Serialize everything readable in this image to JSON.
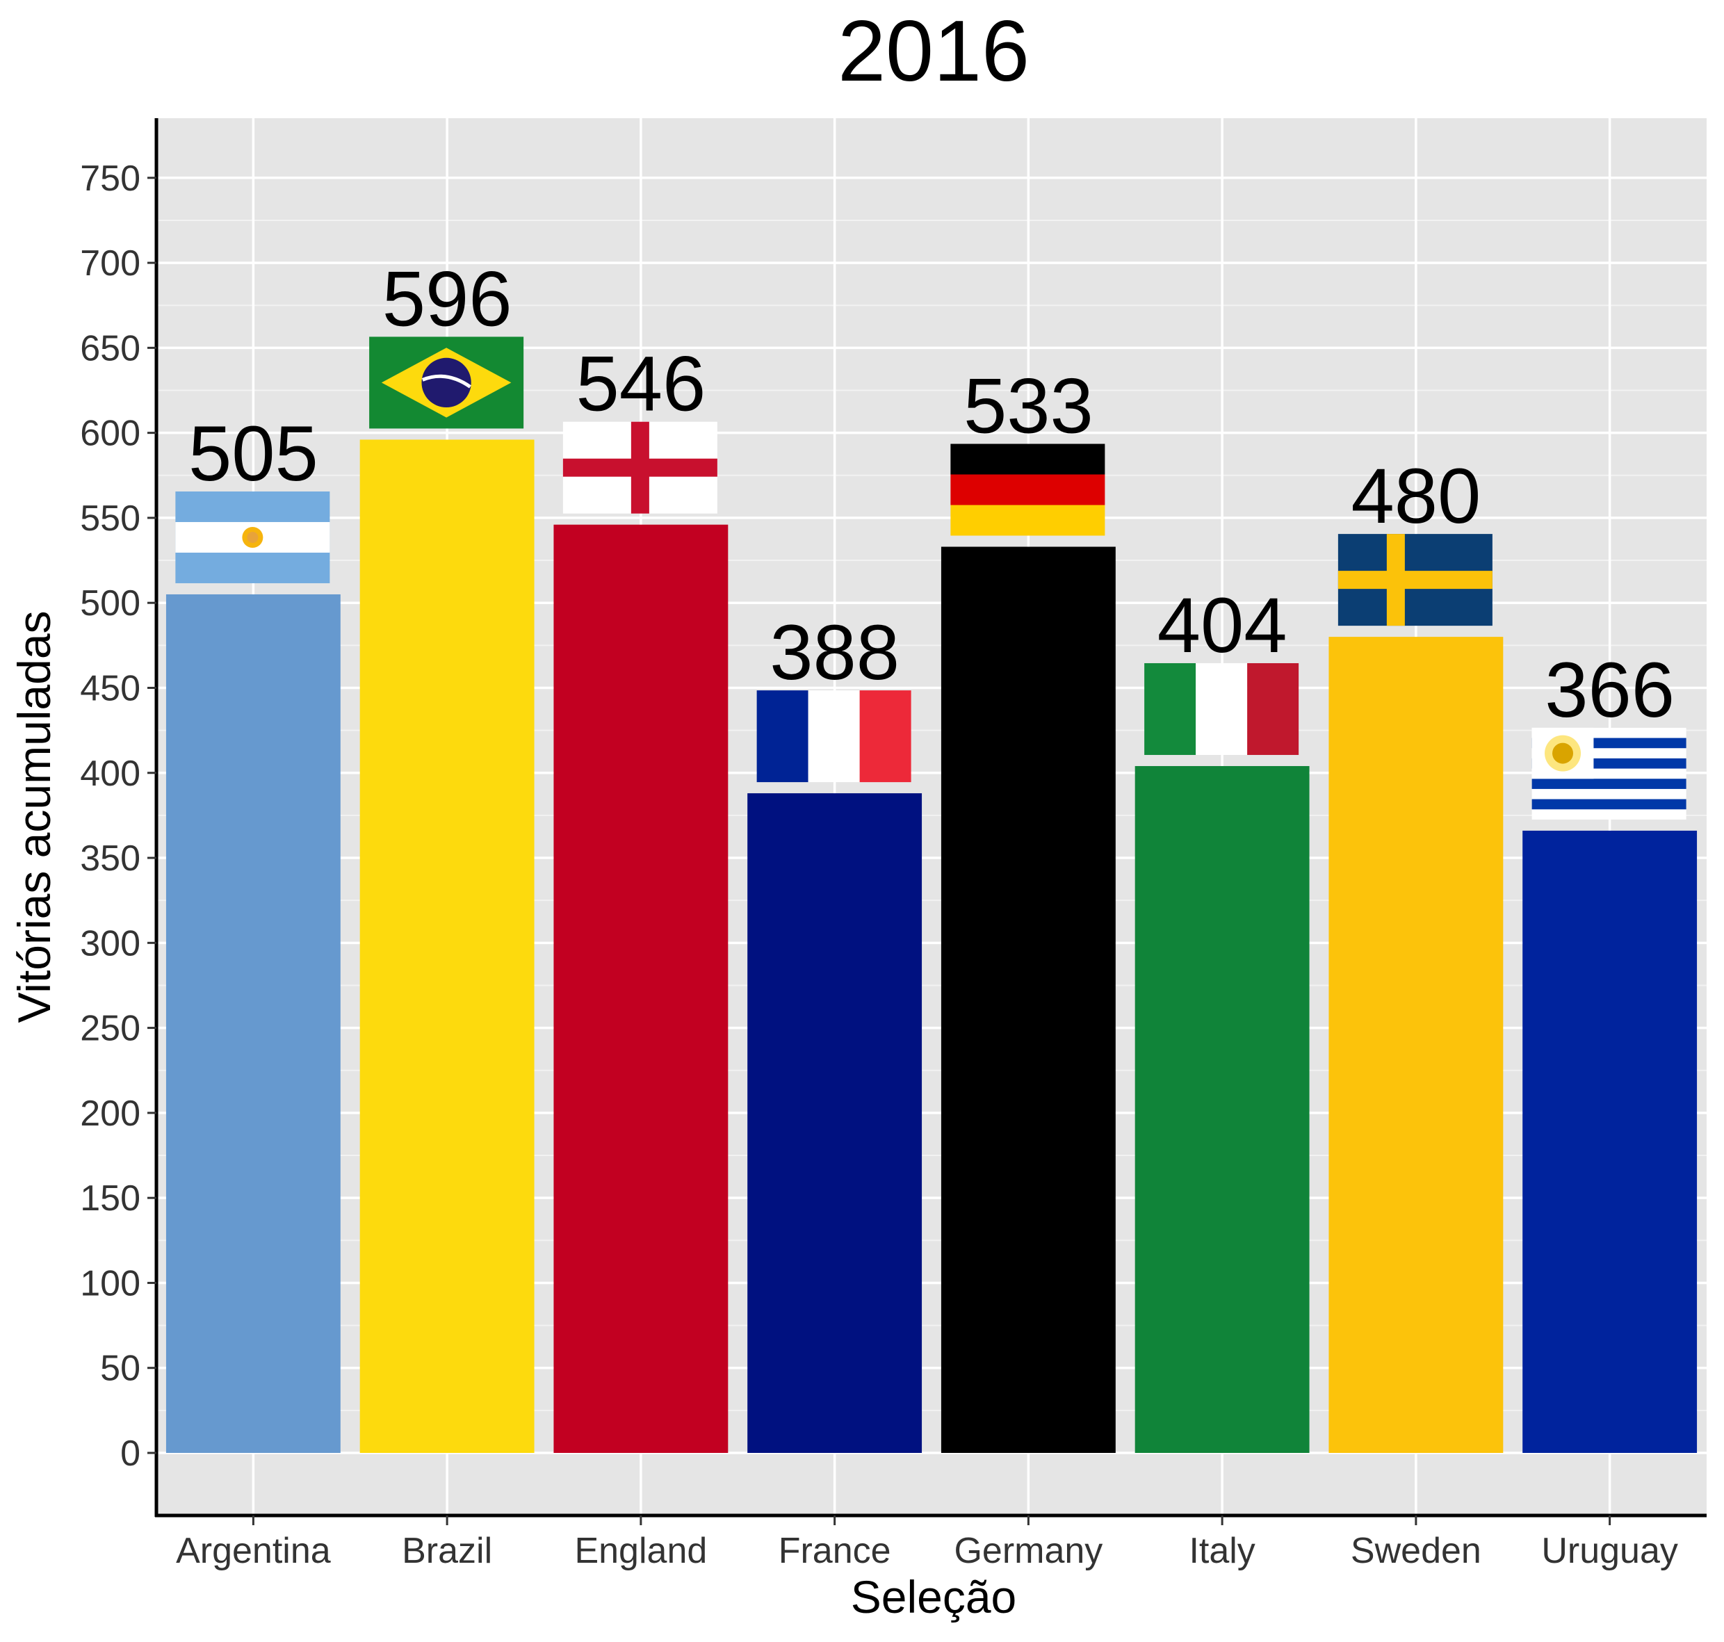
{
  "chart_data": {
    "type": "bar",
    "title": "2016",
    "xlabel": "Seleção",
    "ylabel": "Vitórias acumuladas",
    "ylim": [
      -35,
      785
    ],
    "yticks": [
      0,
      50,
      100,
      150,
      200,
      250,
      300,
      350,
      400,
      450,
      500,
      550,
      600,
      650,
      700,
      750
    ],
    "grid": true,
    "categories": [
      "Argentina",
      "Brazil",
      "England",
      "France",
      "Germany",
      "Italy",
      "Sweden",
      "Uruguay"
    ],
    "values": [
      505,
      596,
      546,
      388,
      533,
      404,
      480,
      366
    ],
    "colors": [
      "#6699CF",
      "#FDDA0D",
      "#C20021",
      "#001180",
      "#000000",
      "#108439",
      "#FCC30B",
      "#00239D"
    ],
    "flags": [
      "argentina-flag",
      "brazil-flag",
      "england-flag",
      "france-flag",
      "germany-flag",
      "italy-flag",
      "sweden-flag",
      "uruguay-flag"
    ]
  }
}
